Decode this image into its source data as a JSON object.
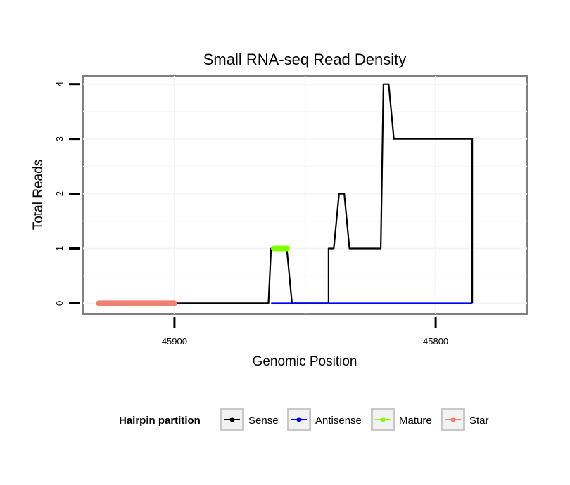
{
  "chart_data": {
    "type": "line",
    "title": "Small RNA-seq Read Density",
    "xlabel": "Genomic Position",
    "ylabel": "Total Reads",
    "x_reversed": true,
    "xlim": [
      45935,
      45765
    ],
    "ylim": [
      -0.2,
      4.15
    ],
    "x_ticks": [
      45900,
      45800
    ],
    "x_tick_labels": [
      "45900",
      "45800"
    ],
    "y_ticks": [
      0,
      1,
      2,
      3,
      4
    ],
    "y_tick_labels": [
      "0",
      "1",
      "2",
      "3",
      "4"
    ],
    "grid": true,
    "legend_position": "bottom",
    "legend_title": "Hairpin partition",
    "series": [
      {
        "name": "Sense",
        "color": "#000000",
        "width": 2.2,
        "x": [
          45922,
          45865,
          45865,
          45864,
          45863,
          45857,
          45855,
          45845,
          45844,
          45841,
          45841,
          45839,
          45837,
          45835,
          45833,
          45821,
          45820,
          45818,
          45816,
          45814,
          45814,
          45813,
          45786,
          45786
        ],
        "y": [
          0,
          0,
          0,
          0,
          1,
          1,
          0,
          0,
          0,
          0,
          1,
          1,
          2,
          2,
          1,
          1,
          4,
          4,
          3,
          3,
          3,
          3,
          3,
          0
        ]
      },
      {
        "name": "Antisense",
        "color": "#0000ff",
        "width": 2,
        "x": [
          45863,
          45855,
          45855,
          45816,
          45814,
          45786
        ],
        "y": [
          0,
          0,
          0,
          0,
          0,
          0
        ]
      },
      {
        "name": "Mature",
        "color": "#7fff00",
        "width": 8,
        "x": [
          45862,
          45857
        ],
        "y": [
          1,
          1
        ]
      },
      {
        "name": "Star",
        "color": "#f08070",
        "width": 8,
        "x": [
          45929,
          45900
        ],
        "y": [
          0,
          0
        ]
      }
    ]
  }
}
